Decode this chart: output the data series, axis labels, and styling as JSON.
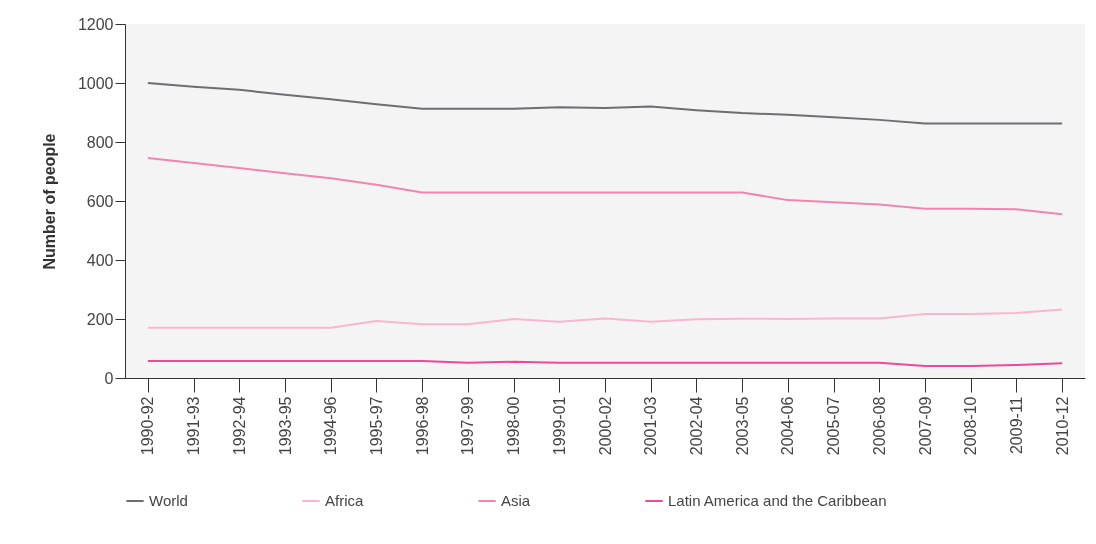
{
  "chart_data": {
    "type": "line",
    "ylabel": "Number of people",
    "categories": [
      "1990-92",
      "1991-93",
      "1992-94",
      "1993-95",
      "1994-96",
      "1995-97",
      "1996-98",
      "1997-99",
      "1998-00",
      "1999-01",
      "2000-02",
      "2001-03",
      "2002-04",
      "2003-05",
      "2004-06",
      "2005-07",
      "2006-08",
      "2007-09",
      "2008-10",
      "2009-11",
      "2010-12"
    ],
    "series": [
      {
        "name": "World",
        "color": "#6d6e71",
        "values": [
          1000,
          987,
          977,
          960,
          945,
          928,
          913,
          913,
          913,
          918,
          915,
          920,
          908,
          898,
          892,
          884,
          875,
          863,
          863,
          863,
          863
        ]
      },
      {
        "name": "Africa",
        "color": "#f9b6d0",
        "values": [
          170,
          170,
          170,
          170,
          170,
          193,
          182,
          182,
          200,
          191,
          202,
          191,
          199,
          201,
          200,
          202,
          202,
          217,
          217,
          220,
          232
        ]
      },
      {
        "name": "Asia",
        "color": "#f284b4",
        "values": [
          746,
          729,
          712,
          694,
          677,
          655,
          629,
          629,
          629,
          629,
          629,
          629,
          629,
          629,
          603,
          596,
          588,
          574,
          574,
          572,
          555
        ]
      },
      {
        "name": "Latin America and the Caribbean",
        "color": "#ec4a98",
        "values": [
          58,
          58,
          58,
          58,
          58,
          58,
          58,
          52,
          55,
          52,
          52,
          52,
          52,
          52,
          52,
          52,
          52,
          41,
          41,
          44,
          50
        ]
      }
    ],
    "ylim": [
      0,
      1200
    ],
    "yticks": [
      0,
      200,
      400,
      600,
      800,
      1000,
      1200
    ],
    "grid": false,
    "legend": "bottom"
  }
}
